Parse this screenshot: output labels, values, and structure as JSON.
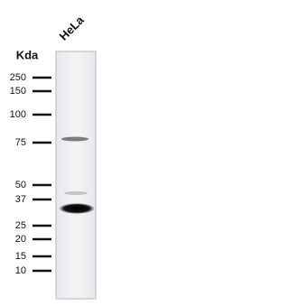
{
  "lane_label": "HeLa",
  "unit_label": "Kda",
  "markers": [
    "250",
    "150",
    "100",
    "75",
    "50",
    "37",
    "25",
    "20",
    "15",
    "10"
  ]
}
